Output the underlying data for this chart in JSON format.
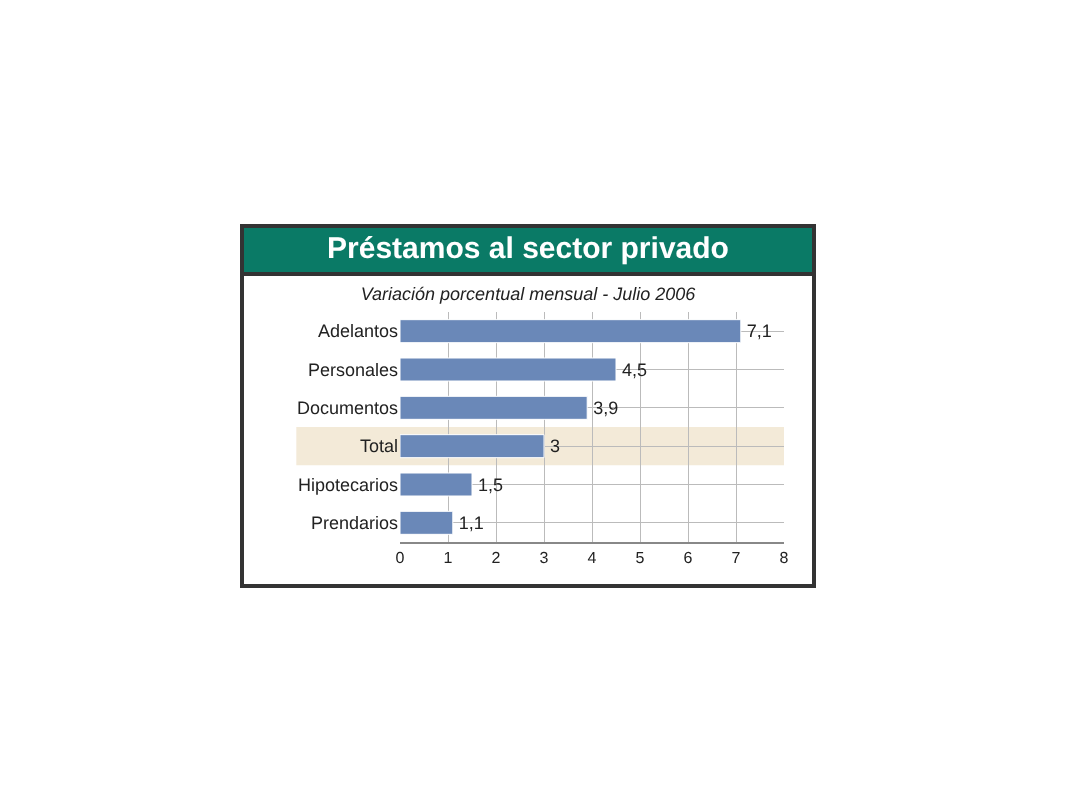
{
  "chart_data": {
    "type": "bar",
    "orientation": "horizontal",
    "title": "Préstamos al sector privado",
    "subtitle": "Variación porcentual mensual - Julio 2006",
    "categories": [
      "Adelantos",
      "Personales",
      "Documentos",
      "Total",
      "Hipotecarios",
      "Prendarios"
    ],
    "values": [
      7.1,
      4.5,
      3.9,
      3,
      1.5,
      1.1
    ],
    "value_labels": [
      "7,1",
      "4,5",
      "3,9",
      "3",
      "1,5",
      "1,1"
    ],
    "color": "#6a88b8",
    "xlim": [
      0,
      8
    ],
    "xticks": [
      0,
      1,
      2,
      3,
      4,
      5,
      6,
      7,
      8
    ],
    "grid": true,
    "bands": [
      {
        "axis": "y",
        "from": "Total",
        "to": "Total",
        "color": "#f3ead8"
      }
    ]
  }
}
